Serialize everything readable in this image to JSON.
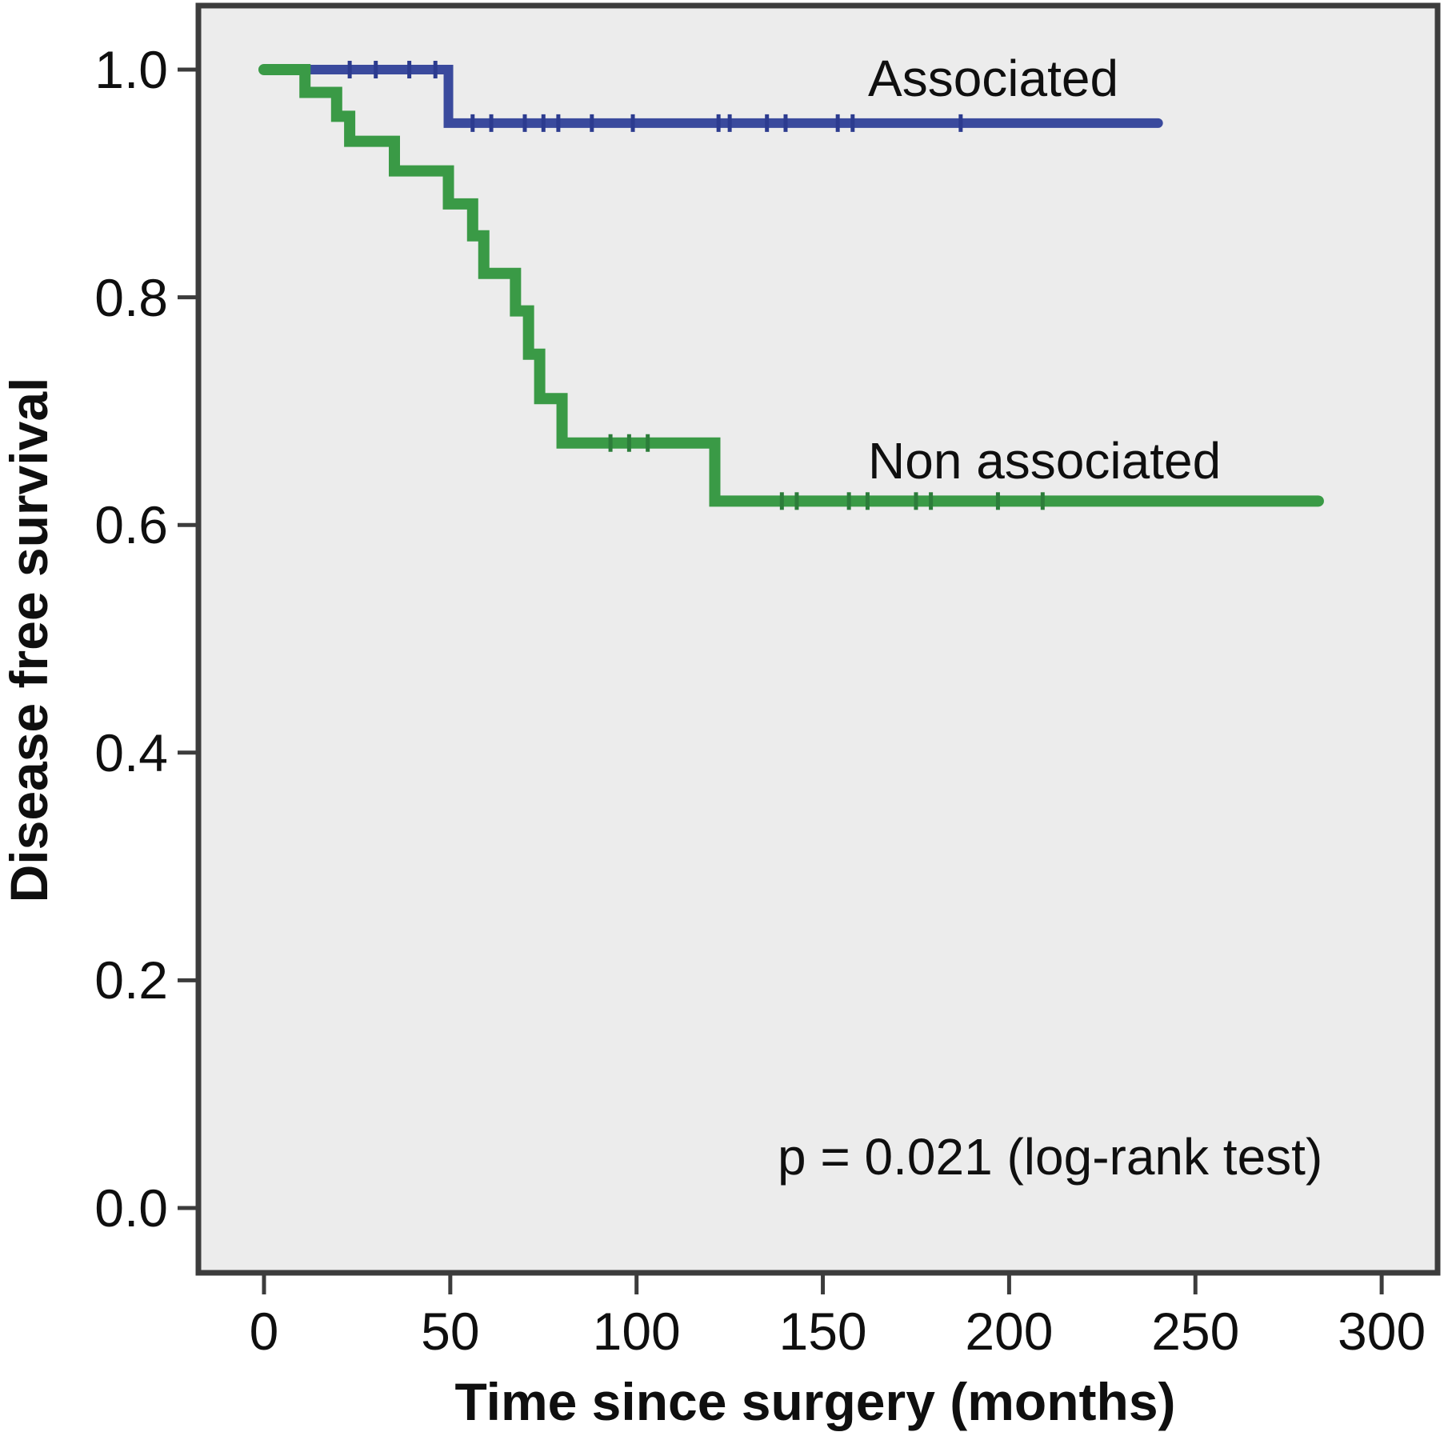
{
  "labels": {
    "series_1": "Associated",
    "series_2": "Non associated",
    "p_value": "p = 0.021 (log-rank test)",
    "x_axis_title": "Time since surgery (months)",
    "y_axis_title": "Disease free survival"
  },
  "colors": {
    "page_background": "#FFFFFF",
    "plot_background": "#ECECEC",
    "frame": "#3C3C3C",
    "text": "#0F0F0F",
    "associated_line": "#3A4A9D",
    "associated_censor": "#2C3B8F",
    "non_associated_line": "#3A9A46",
    "non_associated_censor": "#2C7D3A"
  },
  "chart_data": {
    "type": "line",
    "subtype": "kaplan-meier-step",
    "title": "",
    "xlabel": "Time since surgery (months)",
    "ylabel": "Disease free survival",
    "annotation": "p = 0.021 (log-rank test)",
    "grid": false,
    "legend_position": "inline-labels",
    "xlim": [
      -17.6,
      315
    ],
    "ylim": [
      -0.057,
      1.056
    ],
    "x_ticks": [
      {
        "value": 0,
        "label": "0"
      },
      {
        "value": 50,
        "label": "50"
      },
      {
        "value": 100,
        "label": "100"
      },
      {
        "value": 150,
        "label": "150"
      },
      {
        "value": 200,
        "label": "200"
      },
      {
        "value": 250,
        "label": "250"
      },
      {
        "value": 300,
        "label": "300"
      }
    ],
    "y_ticks": [
      {
        "value": 0.0,
        "label": "0.0"
      },
      {
        "value": 0.2,
        "label": "0.2"
      },
      {
        "value": 0.4,
        "label": "0.4"
      },
      {
        "value": 0.6,
        "label": "0.6"
      },
      {
        "value": 0.8,
        "label": "0.8"
      },
      {
        "value": 1.0,
        "label": "1.0"
      }
    ],
    "series": [
      {
        "name": "Associated",
        "color": "#3A4A9D",
        "censor_color": "#2C3B8F",
        "start": [
          0,
          1.0
        ],
        "drops": [
          [
            49.5,
            0.953
          ]
        ],
        "end_month": 240,
        "censors": [
          [
            23,
            1.0
          ],
          [
            30,
            1.0
          ],
          [
            39,
            1.0
          ],
          [
            46,
            1.0
          ],
          [
            56,
            0.953
          ],
          [
            61,
            0.953
          ],
          [
            70,
            0.953
          ],
          [
            75,
            0.953
          ],
          [
            79,
            0.953
          ],
          [
            88,
            0.953
          ],
          [
            99,
            0.953
          ],
          [
            122,
            0.953
          ],
          [
            125,
            0.953
          ],
          [
            135,
            0.953
          ],
          [
            140,
            0.953
          ],
          [
            154,
            0.953
          ],
          [
            158,
            0.953
          ],
          [
            187,
            0.953
          ]
        ]
      },
      {
        "name": "Non associated",
        "color": "#3A9A46",
        "censor_color": "#2C7D3A",
        "start": [
          0,
          1.0
        ],
        "drops": [
          [
            11,
            0.98
          ],
          [
            19.5,
            0.959
          ],
          [
            23,
            0.937
          ],
          [
            35,
            0.911
          ],
          [
            49.5,
            0.882
          ],
          [
            56,
            0.854
          ],
          [
            59,
            0.821
          ],
          [
            67.5,
            0.788
          ],
          [
            71,
            0.75
          ],
          [
            74,
            0.711
          ],
          [
            80,
            0.672
          ],
          [
            121,
            0.621
          ]
        ],
        "end_month": 283,
        "censors": [
          [
            93,
            0.672
          ],
          [
            98,
            0.672
          ],
          [
            103,
            0.672
          ],
          [
            139,
            0.621
          ],
          [
            143,
            0.621
          ],
          [
            157,
            0.621
          ],
          [
            162,
            0.621
          ],
          [
            175,
            0.621
          ],
          [
            179,
            0.621
          ],
          [
            197,
            0.621
          ],
          [
            209,
            0.621
          ]
        ]
      }
    ]
  }
}
